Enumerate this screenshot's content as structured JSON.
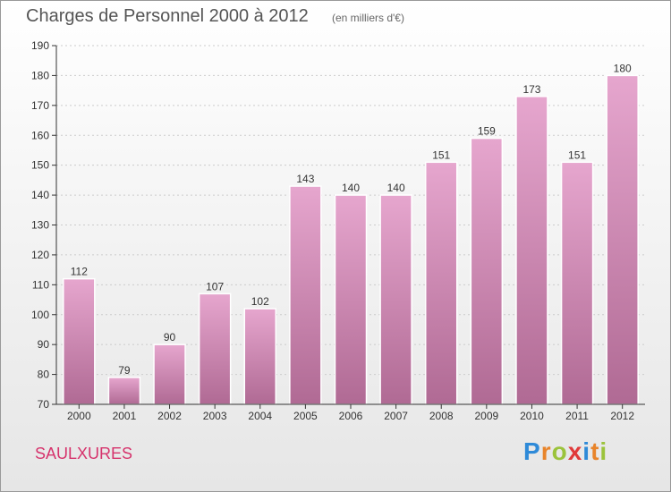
{
  "header": {
    "title": "Charges de Personnel 2000 à 2012",
    "subtitle": "(en milliers d'€)"
  },
  "footer": {
    "place": "SAULXURES",
    "logo_letters": [
      "P",
      "r",
      "o",
      "x",
      "i",
      "t",
      "i"
    ],
    "logo_colors": [
      "#2e8ad8",
      "#e8842a",
      "#9bc33b",
      "#e03a3a",
      "#2e8ad8",
      "#e8842a",
      "#9bc33b"
    ]
  },
  "colors": {
    "bar_top": "#e6a6ce",
    "bar_bottom": "#b06a94",
    "axis": "#333333",
    "grid": "#cccccc"
  },
  "chart_data": {
    "type": "bar",
    "categories": [
      "2000",
      "2001",
      "2002",
      "2003",
      "2004",
      "2005",
      "2006",
      "2007",
      "2008",
      "2009",
      "2010",
      "2011",
      "2012"
    ],
    "values": [
      112,
      79,
      90,
      107,
      102,
      143,
      140,
      140,
      151,
      159,
      173,
      151,
      180
    ],
    "ylim": [
      70,
      190
    ],
    "yticks": [
      70,
      80,
      90,
      100,
      110,
      120,
      130,
      140,
      150,
      160,
      170,
      180,
      190
    ],
    "grid": true,
    "data_labels": true
  }
}
